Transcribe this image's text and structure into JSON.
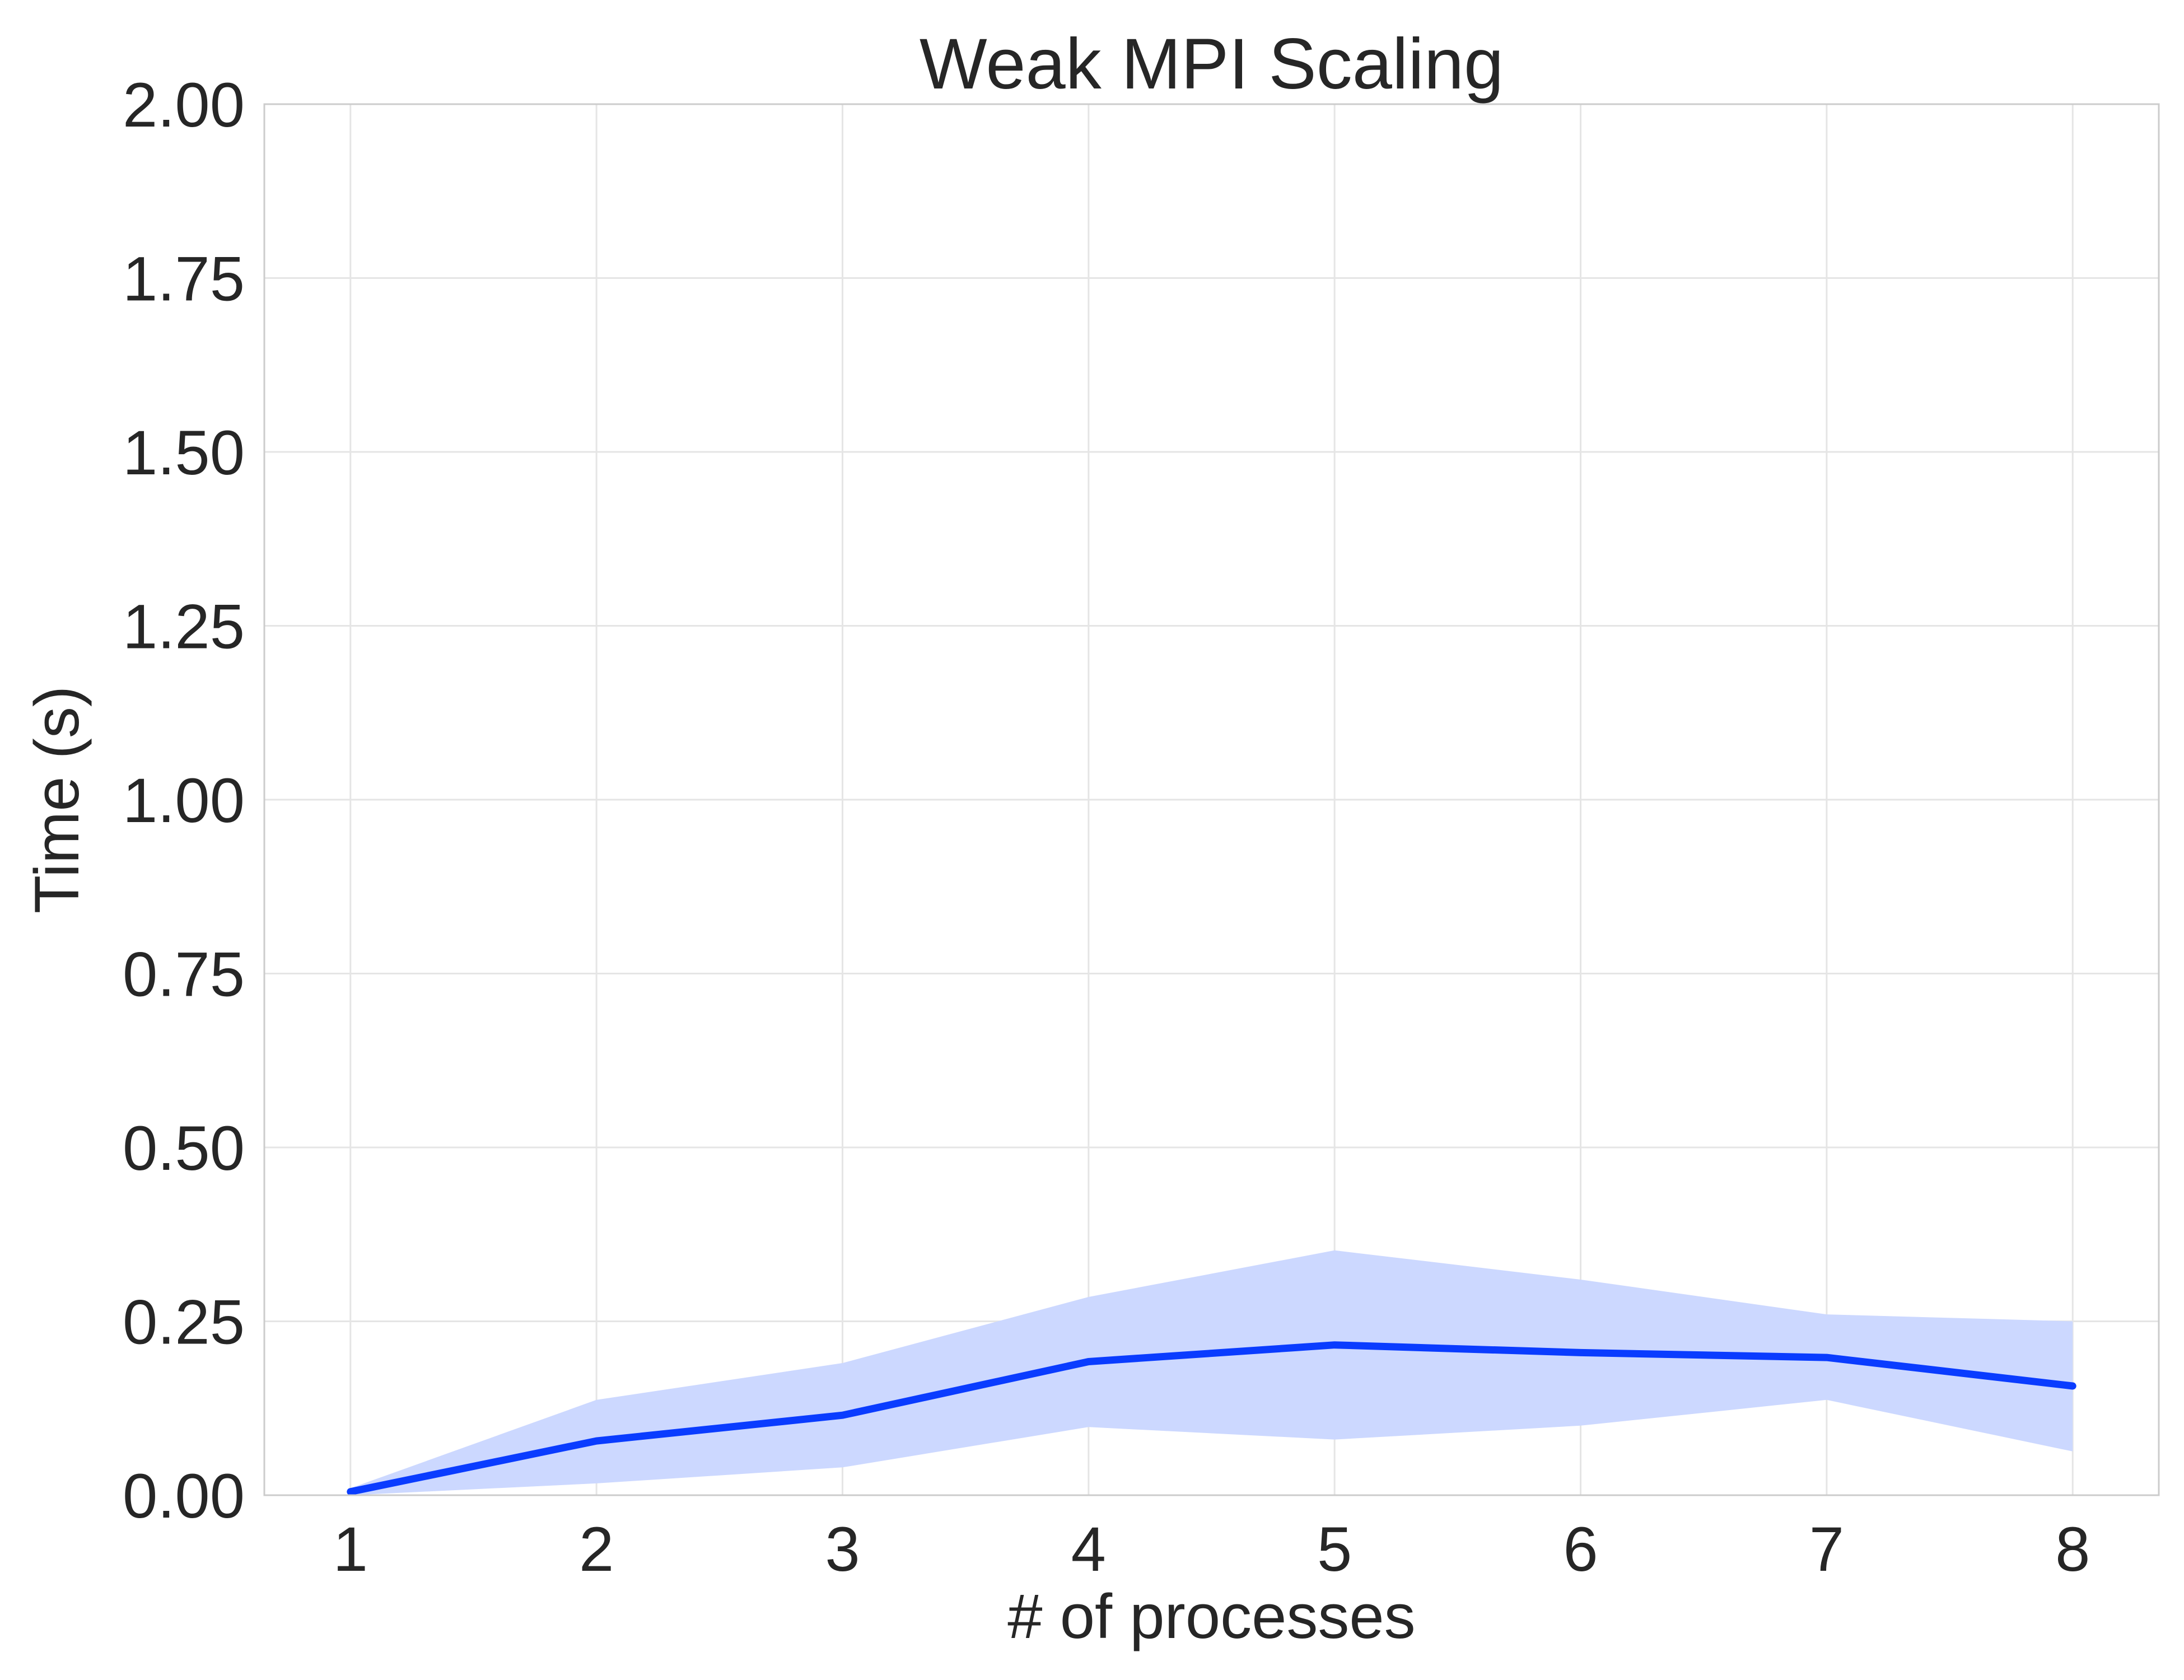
{
  "chart_data": {
    "type": "line",
    "title": "Weak MPI Scaling",
    "xlabel": "# of processes",
    "ylabel": "Time (s)",
    "xlim": [
      0.65,
      8.35
    ],
    "ylim": [
      0.0,
      2.0
    ],
    "x_ticks": [
      1,
      2,
      3,
      4,
      5,
      6,
      7,
      8
    ],
    "y_ticks": [
      0.0,
      0.25,
      0.5,
      0.75,
      1.0,
      1.25,
      1.5,
      1.75,
      2.0
    ],
    "y_tick_labels": [
      "0.00",
      "0.25",
      "0.50",
      "0.75",
      "1.00",
      "1.25",
      "1.50",
      "1.75",
      "2.00"
    ],
    "grid": true,
    "x": [
      1,
      2,
      3,
      4,
      5,
      6,
      7,
      8
    ],
    "series": [
      {
        "values": [
          0.005,
          0.078,
          0.115,
          0.192,
          0.216,
          0.205,
          0.198,
          0.157
        ],
        "band_upper": [
          0.01,
          0.137,
          0.19,
          0.285,
          0.352,
          0.31,
          0.26,
          0.25
        ],
        "band_lower": [
          0.0,
          0.017,
          0.04,
          0.098,
          0.08,
          0.1,
          0.137,
          0.063
        ],
        "color": "#0a3cff",
        "band_color": "#ccd8ff"
      }
    ]
  }
}
